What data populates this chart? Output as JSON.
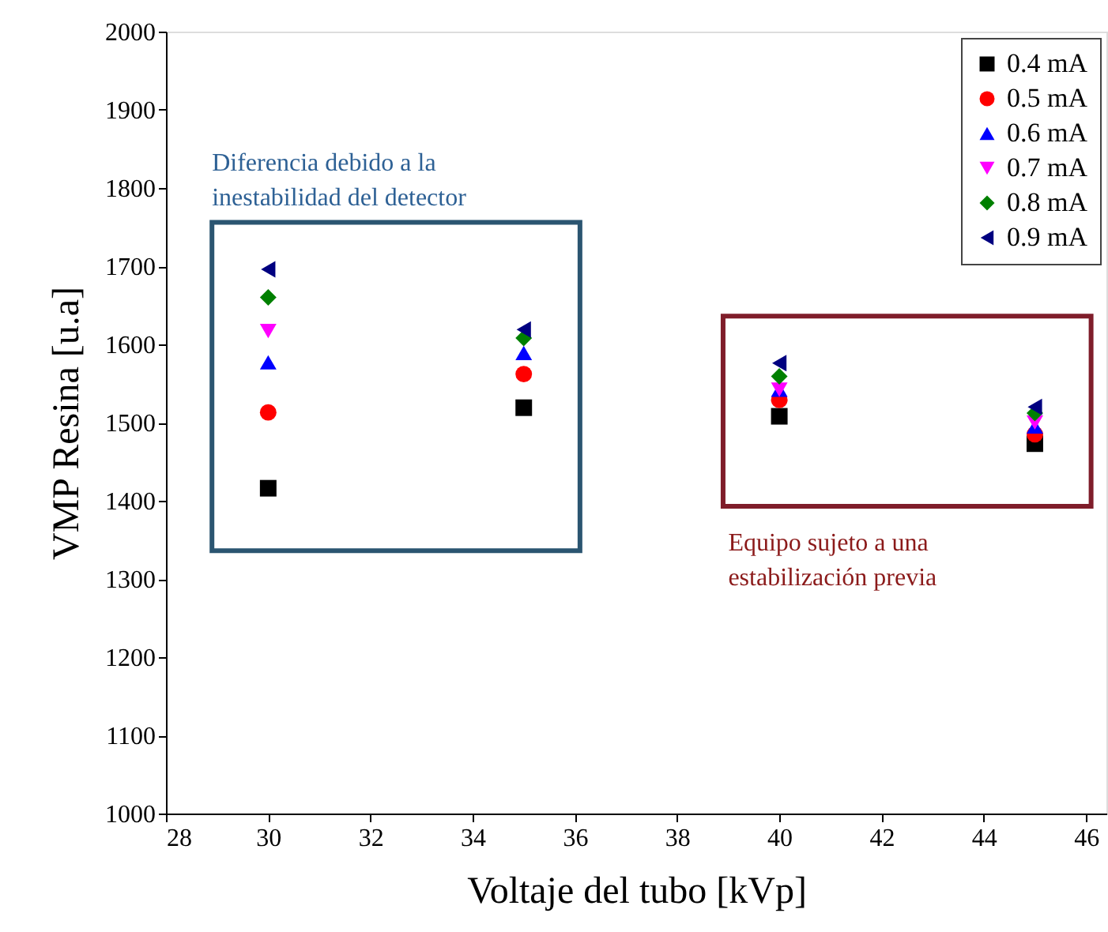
{
  "chart_data": {
    "type": "scatter",
    "xlabel": "Voltaje del tubo [kVp]",
    "ylabel": "VMP Resina [u.a]",
    "x": [
      30,
      35,
      40,
      45
    ],
    "series": [
      {
        "name": "0.4 mA",
        "color": "#000000",
        "marker": "square",
        "values": [
          1416,
          1519,
          1508,
          1473
        ]
      },
      {
        "name": "0.5 mA",
        "color": "#ff0000",
        "marker": "circle",
        "values": [
          1513,
          1562,
          1529,
          1485
        ]
      },
      {
        "name": "0.6 mA",
        "color": "#0000ff",
        "marker": "triangle",
        "values": [
          1577,
          1589,
          1542,
          1495
        ]
      },
      {
        "name": "0.7 mA",
        "color": "#ff00ff",
        "marker": "triangle-down",
        "values": [
          1617,
          null,
          1542,
          1500
        ]
      },
      {
        "name": "0.8 mA",
        "color": "#008000",
        "marker": "diamond",
        "values": [
          1660,
          1608,
          1559,
          1512
        ]
      },
      {
        "name": "0.9 mA",
        "color": "#000080",
        "marker": "triangle-left",
        "values": [
          1696,
          1619,
          1576,
          1520
        ]
      }
    ],
    "annotations": [
      "Diferencia debido a la inestabilidad del detector",
      "Equipo sujeto a una estabilización previa"
    ],
    "xlim": [
      28,
      46.4
    ],
    "xticks": [
      28,
      30,
      32,
      34,
      36,
      38,
      40,
      42,
      44,
      46
    ],
    "ylim": [
      1000,
      2000
    ],
    "yticks": [
      1000,
      1100,
      1200,
      1300,
      1400,
      1500,
      1600,
      1700,
      1800,
      1900,
      2000
    ],
    "grid": false,
    "legend": "top right"
  }
}
